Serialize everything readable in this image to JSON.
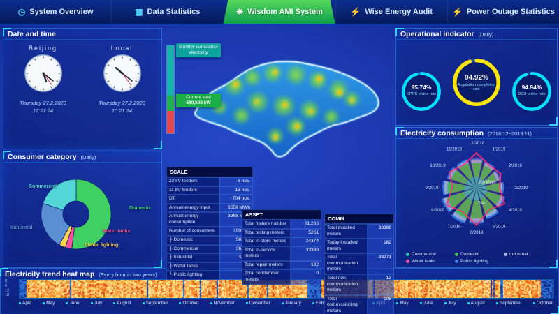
{
  "nav": {
    "tabs": [
      {
        "label": "System Overview",
        "icon": "gauge-icon",
        "glyph": "◷",
        "active": false
      },
      {
        "label": "Data Statistics",
        "icon": "bar-chart-icon",
        "glyph": "▦",
        "active": false
      },
      {
        "label": "Wisdom AMI System",
        "icon": "leaf-icon",
        "glyph": "❋",
        "active": true
      },
      {
        "label": "Wise Energy Audit",
        "icon": "lightning-icon",
        "glyph": "⚡",
        "active": false
      },
      {
        "label": "Power Outage Statistics",
        "icon": "power-outage-icon",
        "glyph": "⚡",
        "active": false
      }
    ]
  },
  "datetime_panel": {
    "title": "Date and time",
    "clocks": [
      {
        "city": "Beijing",
        "date": "Thursday 27.2.2020",
        "time": "17:21:24"
      },
      {
        "city": "Local",
        "date": "Thursday 27.2.2020",
        "time": "10:21:24"
      }
    ]
  },
  "consumer_category": {
    "title": "Consumer category",
    "subtitle": "(Daily)"
  },
  "load": {
    "monthly_label": "Monthly cumulative electricity",
    "current_label": "Current load",
    "current_value": "590,509 kW"
  },
  "scale_table": {
    "title": "SCALE",
    "rows": [
      [
        "22 kV feeders",
        "6 nos."
      ],
      [
        "11 kV feeders",
        "15 nos."
      ],
      [
        "DT",
        "704 nos."
      ],
      [
        "Annual energy input",
        "3558 MWh"
      ],
      [
        "Annual energy consumption",
        "3268 MWh"
      ],
      [
        "Number of consumers",
        "100,167"
      ],
      [
        "├ Domestic",
        "58,713"
      ],
      [
        "├ Commercial",
        "36,525"
      ],
      [
        "├ Industrial",
        "4,729"
      ],
      [
        "├ Water tanks",
        "68"
      ],
      [
        "└ Public lighting",
        "132"
      ]
    ]
  },
  "asset_table": {
    "title": "ASSET",
    "rows": [
      [
        "Total meters number",
        "61,206"
      ],
      [
        "Total testing meters",
        "5261"
      ],
      [
        "Total in-store meters",
        "24374"
      ],
      [
        "Total in-service meters",
        "33389"
      ],
      [
        "Total repair meters",
        "182"
      ],
      [
        "Total condemned meters",
        "0"
      ]
    ]
  },
  "comm_table": {
    "title": "COMM",
    "rows": [
      [
        "Total installed meters",
        "33389"
      ],
      [
        "Today installed meters",
        "182"
      ],
      [
        "Total communication meters",
        "33271"
      ],
      [
        "Total non-communication meters",
        "13"
      ],
      [
        "Total commissioning meters",
        "105"
      ]
    ]
  },
  "operational": {
    "title": "Operational indicator",
    "subtitle": "(Daily)"
  },
  "consumption_panel": {
    "title": "Electricity consumption",
    "subtitle": "(2018.12~2019.11)",
    "legend": [
      {
        "label": "Commercial",
        "color": "#2fc4b2"
      },
      {
        "label": "Domestic",
        "color": "#46c94f"
      },
      {
        "label": "Industrial",
        "color": "#9fb6d9"
      },
      {
        "label": "Water tanks",
        "color": "#ff4f9a"
      },
      {
        "label": "Public lighting",
        "color": "#3b82f6"
      }
    ]
  },
  "heatmap_panel": {
    "title": "Electricity trend heat map",
    "subtitle": "(Every hour in two years)"
  },
  "chart_data": [
    {
      "type": "pie",
      "title": "Consumer category (Daily)",
      "slices": [
        {
          "label": "Domestic",
          "value": 52,
          "color": "#3fcf63"
        },
        {
          "label": "Water tanks",
          "value": 3,
          "color": "#ff4f9a"
        },
        {
          "label": "Public lighting",
          "value": 3,
          "color": "#ffd54a"
        },
        {
          "label": "Industrial",
          "value": 22,
          "color": "#5b8fd4"
        },
        {
          "label": "Commercial",
          "value": 20,
          "color": "#53d6d6"
        }
      ]
    },
    {
      "type": "gauge",
      "title": "Operational indicator (Daily)",
      "gauges": [
        {
          "label": "GPRS online rate",
          "value": 95.74,
          "unit": "%",
          "color": "#00e0ff"
        },
        {
          "label": "Acquisition completion rate",
          "value": 94.92,
          "unit": "%",
          "color": "#ffe600"
        },
        {
          "label": "DCU online rate",
          "value": 94.94,
          "unit": "%",
          "color": "#00e0ff"
        }
      ]
    },
    {
      "type": "bar",
      "stacked": true,
      "title": "Monthly cumulative electricity / Current load 590,509 kW",
      "segments": [
        {
          "label": "Monthly cumulative electricity",
          "value": 57,
          "color": "#14b3ae"
        },
        {
          "label": "Current load 590,509 kW",
          "value": 18,
          "color": "#22b24c"
        },
        {
          "label": "",
          "value": 25,
          "color": "#e4484e"
        }
      ]
    },
    {
      "type": "polar-stacked",
      "title": "Electricity consumption (2018.12~2019.11)",
      "categories": [
        "12/2018",
        "1/2019",
        "2/2019",
        "3/2019",
        "4/2019",
        "5/2019",
        "6/2019",
        "7/2019",
        "8/2019",
        "9/2019",
        "10/2019",
        "11/2019"
      ],
      "series": [
        {
          "name": "Commercial",
          "color": "#2fc4b2",
          "values": [
            320,
            300,
            280,
            300,
            330,
            360,
            390,
            410,
            400,
            370,
            340,
            330
          ]
        },
        {
          "name": "Domestic",
          "color": "#46c94f",
          "values": [
            420,
            390,
            360,
            390,
            430,
            470,
            520,
            540,
            530,
            490,
            450,
            430
          ]
        },
        {
          "name": "Industrial",
          "color": "#9fb6d9",
          "values": [
            90,
            85,
            80,
            85,
            95,
            105,
            115,
            120,
            115,
            105,
            95,
            90
          ]
        },
        {
          "name": "Public lighting",
          "color": "#3b82f6",
          "values": [
            40,
            38,
            36,
            38,
            42,
            46,
            50,
            52,
            50,
            46,
            42,
            40
          ]
        }
      ],
      "outline_series": {
        "name": "Water tanks",
        "color": "#ff2d78",
        "values": [
          650,
          480,
          520,
          430,
          600,
          470,
          700,
          520,
          640,
          450,
          580,
          490
        ]
      },
      "axis_ticks": [
        "200 MWh",
        "700"
      ]
    },
    {
      "type": "heatmap",
      "title": "Electricity trend heat map (Every hour in two years)",
      "x_labels": [
        "April",
        "May",
        "June",
        "July",
        "August",
        "September",
        "October",
        "November",
        "December",
        "January",
        "February",
        "March",
        "April",
        "May",
        "June",
        "July",
        "August",
        "September",
        "October"
      ],
      "y_labels": [
        "0",
        "6",
        "12",
        "18"
      ],
      "palette": [
        "#132c8e",
        "#2b6fd4",
        "#7fb8e8",
        "#ffe9a0",
        "#ffc45e",
        "#f58a33",
        "#d84f17"
      ]
    }
  ]
}
